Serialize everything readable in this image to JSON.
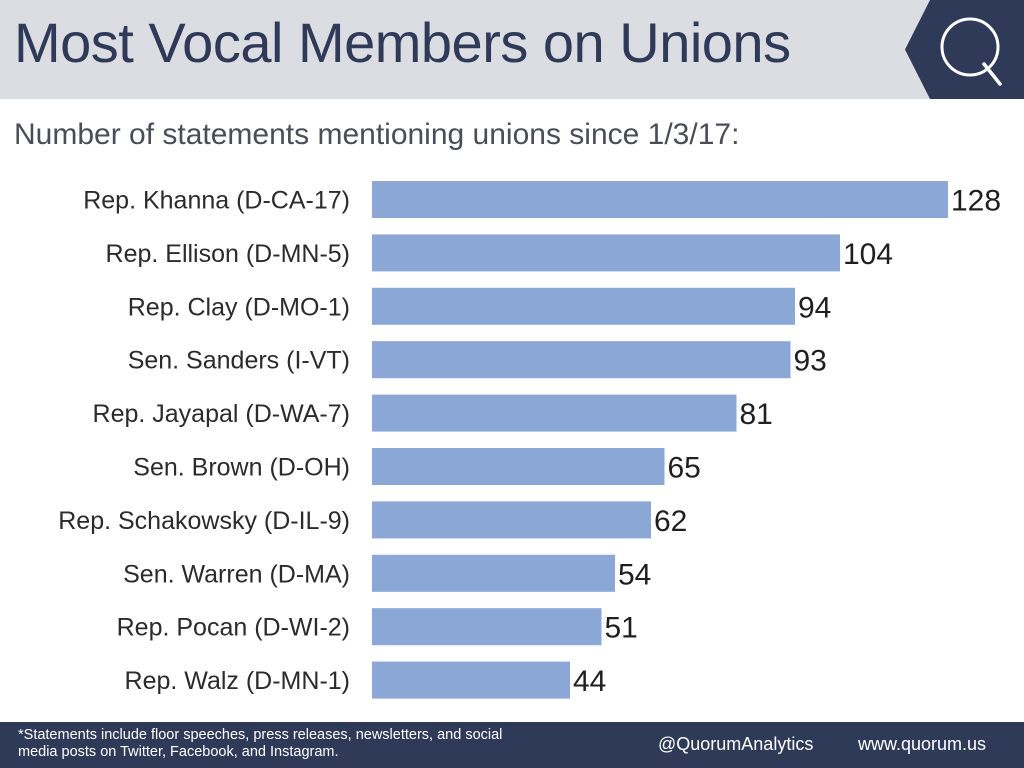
{
  "header": {
    "title": "Most Vocal Members on Unions",
    "subtitle": "Number of statements mentioning unions since 1/3/17:",
    "logo_letter": "Q"
  },
  "colors": {
    "bar": "#8aa7d6",
    "header_bg": "#dcdde2",
    "navy": "#2f3a58"
  },
  "chart_data": {
    "type": "bar",
    "orientation": "horizontal",
    "categories": [
      "Rep. Khanna (D-CA-17)",
      "Rep. Ellison (D-MN-5)",
      "Rep. Clay (D-MO-1)",
      "Sen. Sanders (I-VT)",
      "Rep. Jayapal (D-WA-7)",
      "Sen. Brown (D-OH)",
      "Rep. Schakowsky (D-IL-9)",
      "Sen. Warren (D-MA)",
      "Rep. Pocan (D-WI-2)",
      "Rep. Walz (D-MN-1)"
    ],
    "values": [
      128,
      104,
      94,
      93,
      81,
      65,
      62,
      54,
      51,
      44
    ],
    "title": "Most Vocal Members on Unions",
    "subtitle": "Number of statements mentioning unions since 1/3/17:",
    "xlabel": "",
    "ylabel": "",
    "xlim": [
      0,
      128
    ],
    "grid": false,
    "legend": "none",
    "data_labels": true
  },
  "footer": {
    "footnote": "*Statements include floor speeches, press releases, newsletters, and social media posts on Twitter, Facebook, and Instagram.",
    "handle": "@QuorumAnalytics",
    "website": "www.quorum.us"
  }
}
